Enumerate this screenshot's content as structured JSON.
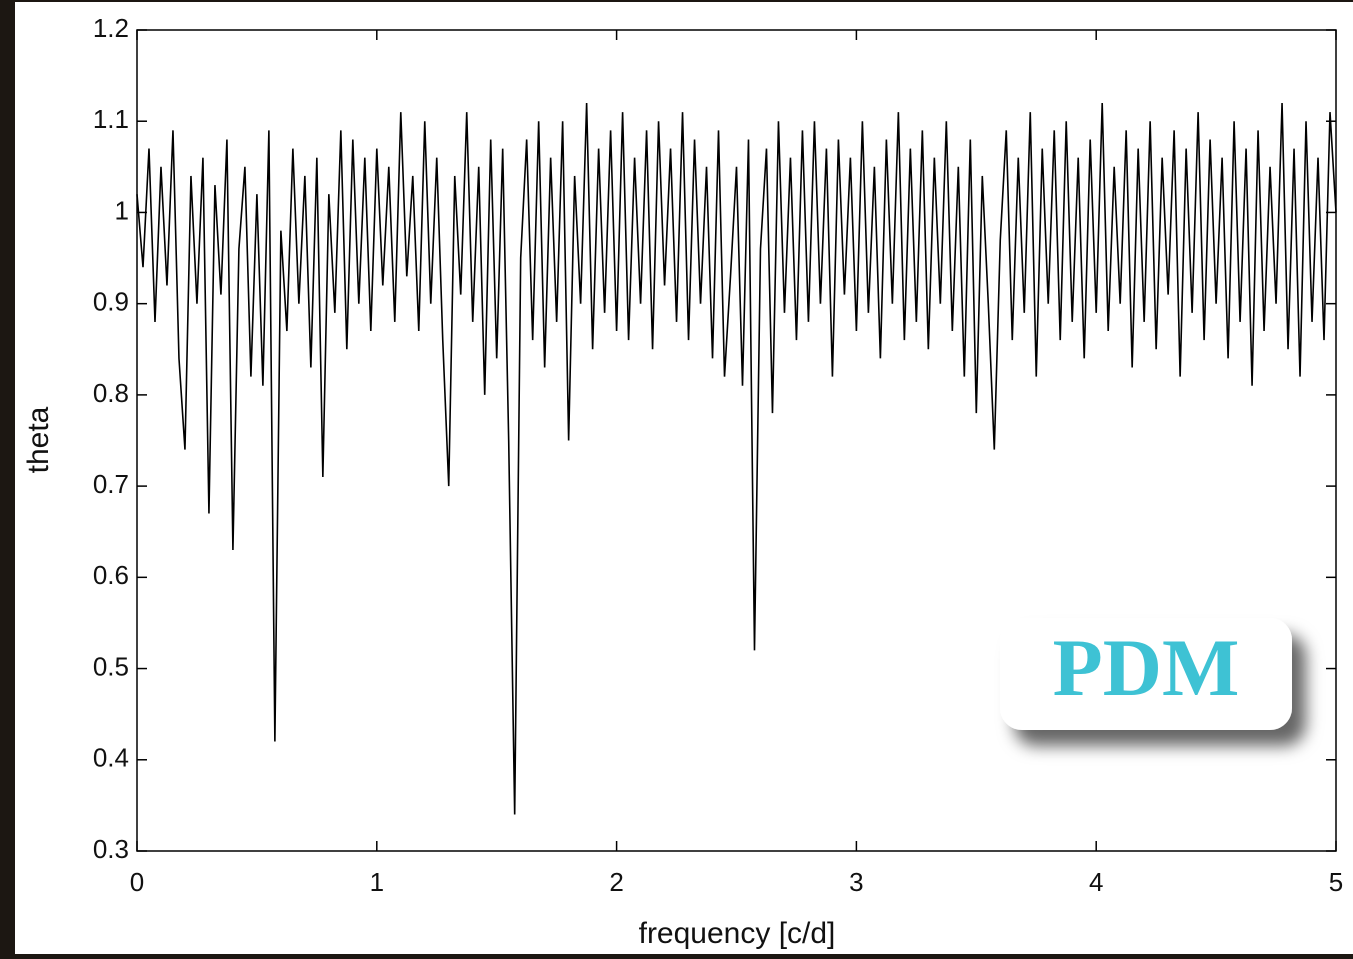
{
  "chart_data": {
    "type": "line",
    "xlabel": "frequency [c/d]",
    "ylabel": "theta",
    "annotation": "PDM",
    "xlim": [
      0,
      5
    ],
    "ylim": [
      0.3,
      1.2
    ],
    "xticks": [
      0,
      1,
      2,
      3,
      4,
      5
    ],
    "yticks": [
      0.3,
      0.4,
      0.5,
      0.6,
      0.7,
      0.8,
      0.9,
      1,
      1.1,
      1.2
    ],
    "color": "#000000",
    "x": [
      0,
      0.025,
      0.05,
      0.075,
      0.1,
      0.125,
      0.15,
      0.175,
      0.2,
      0.225,
      0.25,
      0.275,
      0.3,
      0.325,
      0.35,
      0.375,
      0.4,
      0.425,
      0.45,
      0.475,
      0.5,
      0.525,
      0.55,
      0.575,
      0.6,
      0.625,
      0.65,
      0.675,
      0.7,
      0.725,
      0.75,
      0.775,
      0.8,
      0.825,
      0.85,
      0.875,
      0.9,
      0.925,
      0.95,
      0.975,
      1,
      1.025,
      1.05,
      1.075,
      1.1,
      1.125,
      1.15,
      1.175,
      1.2,
      1.225,
      1.25,
      1.275,
      1.3,
      1.325,
      1.35,
      1.375,
      1.4,
      1.425,
      1.45,
      1.475,
      1.5,
      1.525,
      1.55,
      1.575,
      1.6,
      1.625,
      1.65,
      1.675,
      1.7,
      1.725,
      1.75,
      1.775,
      1.8,
      1.825,
      1.85,
      1.875,
      1.9,
      1.925,
      1.95,
      1.975,
      2,
      2.025,
      2.05,
      2.075,
      2.1,
      2.125,
      2.15,
      2.175,
      2.2,
      2.225,
      2.25,
      2.275,
      2.3,
      2.325,
      2.35,
      2.375,
      2.4,
      2.425,
      2.45,
      2.475,
      2.5,
      2.525,
      2.55,
      2.575,
      2.6,
      2.625,
      2.65,
      2.675,
      2.7,
      2.725,
      2.75,
      2.775,
      2.8,
      2.825,
      2.85,
      2.875,
      2.9,
      2.925,
      2.95,
      2.975,
      3,
      3.025,
      3.05,
      3.075,
      3.1,
      3.125,
      3.15,
      3.175,
      3.2,
      3.225,
      3.25,
      3.275,
      3.3,
      3.325,
      3.35,
      3.375,
      3.4,
      3.425,
      3.45,
      3.475,
      3.5,
      3.525,
      3.55,
      3.575,
      3.6,
      3.625,
      3.65,
      3.675,
      3.7,
      3.725,
      3.75,
      3.775,
      3.8,
      3.825,
      3.85,
      3.875,
      3.9,
      3.925,
      3.95,
      3.975,
      4,
      4.025,
      4.05,
      4.075,
      4.1,
      4.125,
      4.15,
      4.175,
      4.2,
      4.225,
      4.25,
      4.275,
      4.3,
      4.325,
      4.35,
      4.375,
      4.4,
      4.425,
      4.45,
      4.475,
      4.5,
      4.525,
      4.55,
      4.575,
      4.6,
      4.625,
      4.65,
      4.675,
      4.7,
      4.725,
      4.75,
      4.775,
      4.8,
      4.825,
      4.85,
      4.875,
      4.9,
      4.925,
      4.95,
      4.975,
      5
    ],
    "values": [
      1.02,
      0.94,
      1.07,
      0.88,
      1.05,
      0.92,
      1.09,
      0.84,
      0.74,
      1.04,
      0.9,
      1.06,
      0.67,
      1.03,
      0.91,
      1.08,
      0.63,
      0.96,
      1.05,
      0.82,
      1.02,
      0.81,
      1.09,
      0.42,
      0.98,
      0.87,
      1.07,
      0.9,
      1.04,
      0.83,
      1.06,
      0.71,
      1.02,
      0.89,
      1.09,
      0.85,
      1.08,
      0.9,
      1.06,
      0.87,
      1.07,
      0.92,
      1.05,
      0.88,
      1.11,
      0.93,
      1.04,
      0.87,
      1.1,
      0.9,
      1.06,
      0.86,
      0.7,
      1.04,
      0.91,
      1.11,
      0.88,
      1.05,
      0.8,
      1.08,
      0.84,
      1.07,
      0.75,
      0.34,
      0.95,
      1.08,
      0.86,
      1.1,
      0.83,
      1.06,
      0.88,
      1.1,
      0.75,
      1.04,
      0.9,
      1.12,
      0.85,
      1.07,
      0.89,
      1.09,
      0.87,
      1.11,
      0.86,
      1.06,
      0.9,
      1.09,
      0.85,
      1.1,
      0.92,
      1.07,
      0.88,
      1.11,
      0.86,
      1.08,
      0.9,
      1.05,
      0.84,
      1.09,
      0.82,
      0.93,
      1.05,
      0.81,
      1.08,
      0.52,
      0.96,
      1.07,
      0.78,
      1.1,
      0.89,
      1.06,
      0.86,
      1.09,
      0.88,
      1.1,
      0.9,
      1.07,
      0.82,
      1.08,
      0.91,
      1.06,
      0.87,
      1.1,
      0.89,
      1.05,
      0.84,
      1.08,
      0.9,
      1.11,
      0.86,
      1.07,
      0.88,
      1.09,
      0.85,
      1.06,
      0.9,
      1.1,
      0.87,
      1.05,
      0.82,
      1.08,
      0.78,
      1.04,
      0.9,
      0.74,
      0.97,
      1.09,
      0.86,
      1.06,
      0.89,
      1.11,
      0.82,
      1.07,
      0.9,
      1.09,
      0.86,
      1.1,
      0.88,
      1.06,
      0.84,
      1.08,
      0.89,
      1.12,
      0.87,
      1.05,
      0.9,
      1.09,
      0.83,
      1.07,
      0.88,
      1.1,
      0.85,
      1.06,
      0.91,
      1.09,
      0.82,
      1.07,
      0.89,
      1.11,
      0.86,
      1.08,
      0.9,
      1.06,
      0.84,
      1.1,
      0.88,
      1.07,
      0.81,
      1.09,
      0.87,
      1.05,
      0.9,
      1.12,
      0.85,
      1.07,
      0.82,
      1.1,
      0.88,
      1.06,
      0.86,
      1.11,
      1.0
    ]
  }
}
